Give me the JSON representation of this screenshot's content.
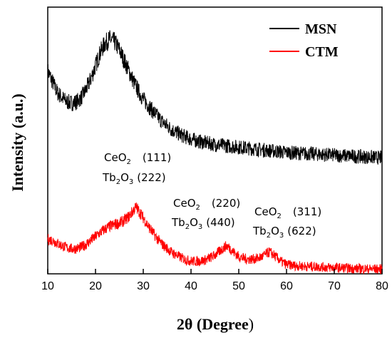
{
  "chart_data": {
    "type": "line",
    "xlabel_main": "2θ (",
    "xlabel_unit": "Degree",
    "xlabel_close": ")",
    "ylabel": "Intensity (a.u.)",
    "xlim": [
      10,
      80
    ],
    "xticks": [
      "10",
      "20",
      "30",
      "40",
      "50",
      "60",
      "70",
      "80"
    ],
    "y_tick_labels": false,
    "grid": false,
    "legend_position": "top-right",
    "series": [
      {
        "name": "MSN",
        "color": "#000000",
        "x": [
          10,
          11,
          12,
          13,
          14,
          15,
          16,
          17,
          18,
          19,
          20,
          21,
          22,
          23,
          24,
          25,
          26,
          27,
          28,
          29,
          30,
          32,
          34,
          36,
          38,
          40,
          42,
          45,
          50,
          55,
          60,
          65,
          70,
          75,
          80
        ],
        "y": [
          0.76,
          0.72,
          0.68,
          0.66,
          0.645,
          0.64,
          0.645,
          0.66,
          0.69,
          0.73,
          0.78,
          0.83,
          0.865,
          0.88,
          0.87,
          0.84,
          0.8,
          0.76,
          0.72,
          0.685,
          0.655,
          0.61,
          0.57,
          0.54,
          0.52,
          0.505,
          0.495,
          0.485,
          0.475,
          0.465,
          0.455,
          0.45,
          0.445,
          0.44,
          0.435
        ]
      },
      {
        "name": "CTM",
        "color": "#ff0000",
        "x": [
          10,
          11,
          12,
          13,
          14,
          15,
          16,
          17,
          18,
          19,
          20,
          21,
          22,
          23,
          24,
          25,
          26,
          27,
          28,
          28.5,
          29,
          30,
          31,
          32,
          33,
          34,
          35,
          36,
          37,
          38,
          39,
          40,
          41,
          42,
          43,
          44,
          45,
          46,
          47,
          47.5,
          48,
          49,
          50,
          51,
          52,
          53,
          54,
          55,
          56,
          56.5,
          57,
          58,
          59,
          60,
          62,
          64,
          66,
          68,
          70,
          72,
          74,
          76,
          78,
          80
        ],
        "y": [
          0.13,
          0.125,
          0.115,
          0.105,
          0.098,
          0.094,
          0.095,
          0.1,
          0.11,
          0.125,
          0.14,
          0.155,
          0.168,
          0.178,
          0.185,
          0.19,
          0.2,
          0.215,
          0.24,
          0.25,
          0.238,
          0.21,
          0.18,
          0.155,
          0.13,
          0.11,
          0.095,
          0.08,
          0.07,
          0.06,
          0.052,
          0.048,
          0.047,
          0.048,
          0.052,
          0.06,
          0.07,
          0.085,
          0.1,
          0.105,
          0.098,
          0.08,
          0.065,
          0.058,
          0.055,
          0.055,
          0.058,
          0.065,
          0.078,
          0.082,
          0.075,
          0.06,
          0.045,
          0.035,
          0.03,
          0.028,
          0.027,
          0.025,
          0.023,
          0.022,
          0.02,
          0.019,
          0.018,
          0.018
        ]
      }
    ],
    "annotations": [
      {
        "id": "a111",
        "x": 28.5,
        "line1_main": "CeO",
        "line1_sub": "2",
        "line1_hkl": "(111)",
        "line2_a": "Tb",
        "line2_sub1": "2",
        "line2_b": "O",
        "line2_sub2": "3",
        "line2_hkl": "(222)"
      },
      {
        "id": "a220",
        "x": 47.5,
        "line1_main": "CeO",
        "line1_sub": "2",
        "line1_hkl": "(220)",
        "line2_a": "Tb",
        "line2_sub1": "2",
        "line2_b": "O",
        "line2_sub2": "3",
        "line2_hkl": "(440)"
      },
      {
        "id": "a311",
        "x": 56.5,
        "line1_main": "CeO",
        "line1_sub": "2",
        "line1_hkl": "(311)",
        "line2_a": "Tb",
        "line2_sub1": "2",
        "line2_b": "O",
        "line2_sub2": "3",
        "line2_hkl": "(622)"
      }
    ]
  }
}
